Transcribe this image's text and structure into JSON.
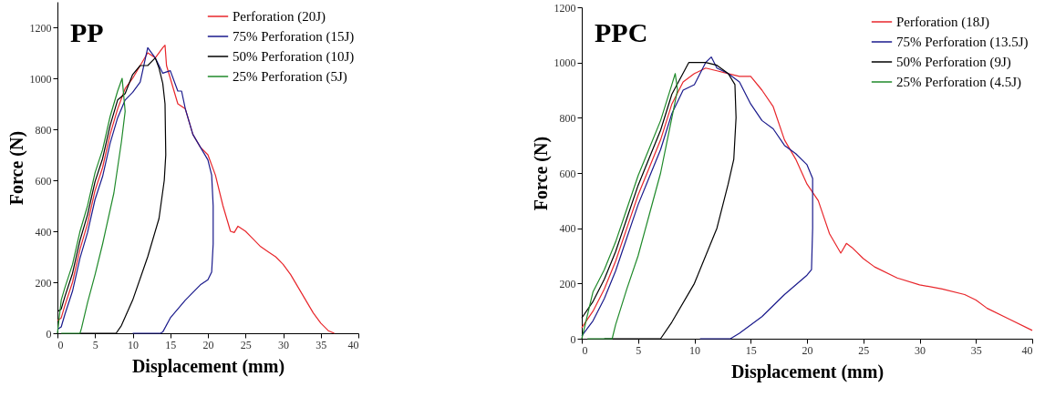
{
  "chart_data": [
    {
      "type": "line",
      "title": "PP",
      "xlabel": "Displacement (mm)",
      "ylabel": "Force (N)",
      "xlim": [
        0,
        40
      ],
      "xticks": [
        0,
        5,
        10,
        15,
        20,
        25,
        30,
        35,
        40
      ],
      "ylim": [
        0,
        1300
      ],
      "yticks": [
        0,
        200,
        400,
        600,
        800,
        1000,
        1200
      ],
      "legend": "top right",
      "series": [
        {
          "name": "Perforation (20J)",
          "color": "#e8262b",
          "x": [
            0,
            0.5,
            1,
            2,
            3,
            4,
            5,
            6,
            7,
            8,
            9,
            10,
            11,
            12,
            13,
            14,
            14.3,
            14.5,
            15,
            16,
            17,
            18,
            19,
            20,
            21,
            22,
            23,
            23.5,
            24,
            25,
            26,
            27,
            28,
            29,
            30,
            31,
            32,
            33,
            34,
            35,
            36,
            36.8
          ],
          "values": [
            50,
            60,
            110,
            200,
            330,
            430,
            560,
            650,
            780,
            880,
            960,
            1000,
            1050,
            1100,
            1080,
            1120,
            1130,
            1050,
            1000,
            900,
            880,
            780,
            730,
            700,
            620,
            500,
            400,
            395,
            420,
            400,
            370,
            340,
            320,
            300,
            270,
            230,
            180,
            130,
            80,
            40,
            10,
            0
          ]
        },
        {
          "name": "75% Perforation (15J)",
          "color": "#1a1a8c",
          "x": [
            0,
            0.5,
            1,
            2,
            3,
            4,
            5,
            6,
            7,
            8,
            9,
            10,
            11,
            12,
            13,
            14,
            15,
            16,
            16.5,
            17,
            18,
            19,
            20,
            20.5,
            20.7,
            20.7,
            20.5,
            20,
            19,
            17,
            15,
            14,
            13.7,
            10
          ],
          "values": [
            15,
            25,
            75,
            165,
            295,
            395,
            525,
            615,
            745,
            845,
            915,
            945,
            985,
            1120,
            1080,
            1020,
            1030,
            950,
            950,
            880,
            780,
            730,
            680,
            620,
            500,
            350,
            240,
            210,
            190,
            130,
            60,
            5,
            0,
            0
          ]
        },
        {
          "name": "50% Perforation (10J)",
          "color": "#000000",
          "x": [
            0,
            0.5,
            1,
            2,
            3,
            4,
            5,
            6,
            7,
            8,
            9,
            10,
            11,
            12,
            13,
            13.5,
            14,
            14.3,
            14.4,
            14.2,
            13.5,
            12,
            10,
            8.5,
            7.8,
            3
          ],
          "values": [
            85,
            95,
            145,
            235,
            365,
            465,
            595,
            685,
            815,
            915,
            940,
            1015,
            1050,
            1050,
            1080,
            1040,
            980,
            900,
            700,
            600,
            450,
            300,
            130,
            30,
            0,
            0
          ]
        },
        {
          "name": "25% Perforation (5J)",
          "color": "#1f8a2a",
          "x": [
            0,
            0.5,
            1,
            2,
            3,
            4,
            5,
            6,
            7,
            8,
            8.6,
            9,
            8.5,
            7.5,
            6,
            5,
            4,
            3.2,
            3,
            0.5
          ],
          "values": [
            0,
            130,
            180,
            270,
            400,
            500,
            630,
            720,
            850,
            950,
            1000,
            870,
            750,
            550,
            350,
            230,
            120,
            20,
            0,
            0
          ]
        }
      ]
    },
    {
      "type": "line",
      "title": "PPC",
      "xlabel": "Displacement (mm)",
      "ylabel": "Force (N)",
      "xlim": [
        0,
        40
      ],
      "xticks": [
        0,
        5,
        10,
        15,
        20,
        25,
        30,
        35,
        40
      ],
      "ylim": [
        0,
        1200
      ],
      "yticks": [
        0,
        200,
        400,
        600,
        800,
        1000,
        1200
      ],
      "legend": "top right",
      "series": [
        {
          "name": "Perforation (18J)",
          "color": "#e8262b",
          "x": [
            0,
            1,
            2,
            3,
            4,
            5,
            6,
            7,
            8,
            9,
            10,
            11,
            12,
            13,
            14,
            15,
            16,
            17,
            18,
            19,
            20,
            21,
            22,
            23,
            23.5,
            24,
            25,
            26,
            28,
            30,
            32,
            34,
            35,
            36,
            38,
            40
          ],
          "values": [
            40,
            100,
            180,
            280,
            400,
            520,
            620,
            720,
            850,
            930,
            960,
            980,
            970,
            960,
            950,
            950,
            900,
            840,
            720,
            650,
            560,
            500,
            380,
            310,
            345,
            330,
            290,
            260,
            220,
            195,
            180,
            160,
            140,
            110,
            70,
            30
          ]
        },
        {
          "name": "75% Perforation (13.5J)",
          "color": "#1a1a8c",
          "x": [
            0,
            1,
            2,
            3,
            4,
            5,
            6,
            7,
            8,
            9,
            10,
            11,
            11.5,
            12,
            13,
            14,
            15,
            16,
            17,
            18,
            19,
            20,
            20.5,
            20.5,
            20.4,
            20,
            18,
            16,
            14,
            13.2,
            10.5
          ],
          "values": [
            10,
            65,
            145,
            245,
            365,
            485,
            585,
            685,
            815,
            900,
            920,
            1000,
            1020,
            980,
            960,
            930,
            850,
            790,
            760,
            700,
            670,
            630,
            580,
            400,
            250,
            230,
            160,
            80,
            20,
            0,
            0
          ]
        },
        {
          "name": "50% Perforation (9J)",
          "color": "#000000",
          "x": [
            0,
            1,
            2,
            3,
            4,
            5,
            6,
            7,
            8,
            9.5,
            11,
            12,
            13,
            13.6,
            13.7,
            13.5,
            13,
            12,
            10,
            8,
            7,
            2
          ],
          "values": [
            75,
            135,
            215,
            315,
            435,
            555,
            655,
            755,
            885,
            1000,
            1000,
            990,
            960,
            920,
            800,
            650,
            560,
            400,
            200,
            60,
            0,
            0
          ]
        },
        {
          "name": "25% Perforation (4.5J)",
          "color": "#1f8a2a",
          "x": [
            0,
            1,
            2,
            3,
            4,
            5,
            6,
            7,
            8,
            8.3,
            8.5,
            8,
            7.5,
            7,
            6,
            5,
            4,
            3,
            2.7,
            0.5
          ],
          "values": [
            0,
            170,
            250,
            350,
            470,
            590,
            690,
            790,
            920,
            960,
            900,
            800,
            700,
            600,
            450,
            300,
            180,
            50,
            0,
            0
          ]
        }
      ]
    }
  ]
}
